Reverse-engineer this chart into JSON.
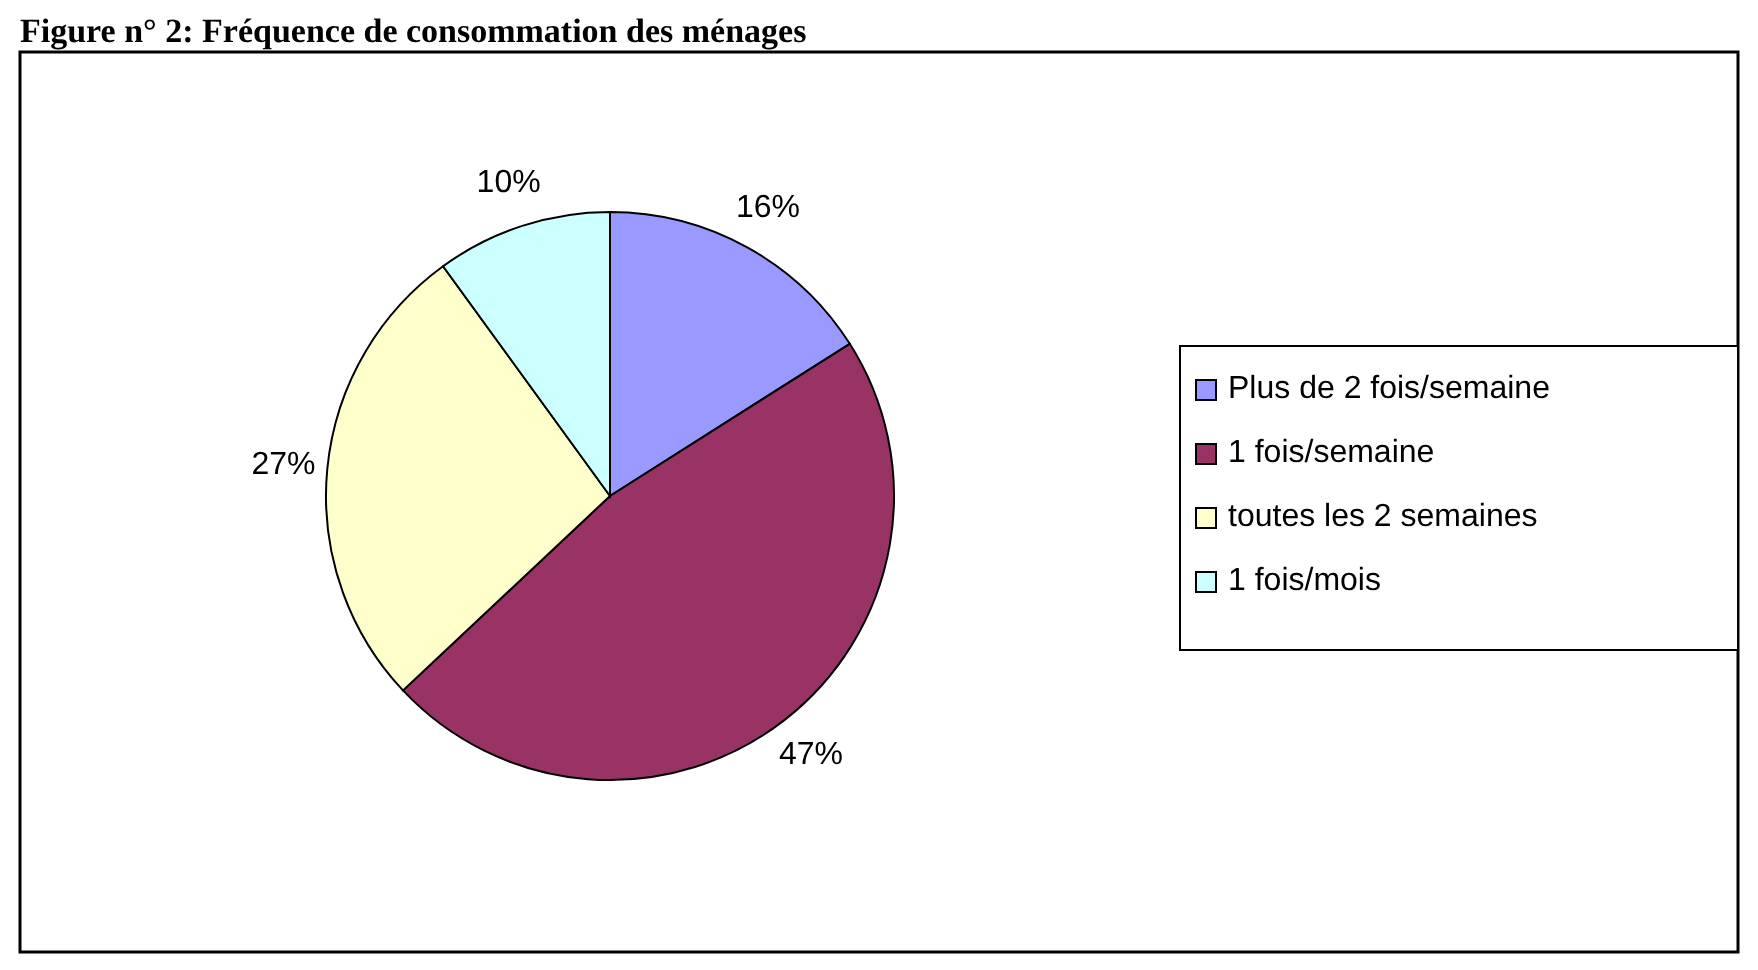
{
  "chart_data": {
    "type": "pie",
    "title": "Figure n° 2: Fréquence de consommation des ménages",
    "categories": [
      "Plus de 2 fois/semaine",
      "1 fois/semaine",
      "toutes les 2 semaines",
      "1 fois/mois"
    ],
    "values": [
      16,
      47,
      27,
      10
    ],
    "colors": [
      "#9999ff",
      "#993366",
      "#ffffcc",
      "#ccffff"
    ],
    "value_labels": [
      "16%",
      "47%",
      "27%",
      "10%"
    ],
    "legend": "right"
  }
}
